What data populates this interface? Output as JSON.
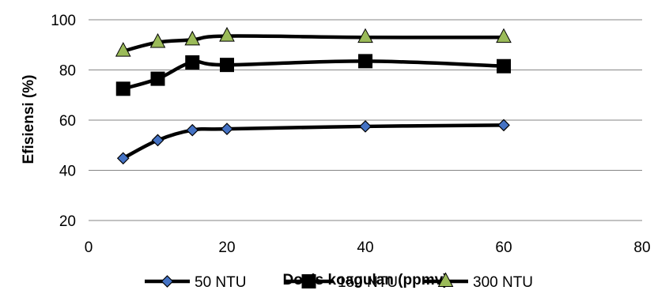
{
  "chart_data": {
    "type": "line",
    "title": "",
    "xlabel": "Dosis koagulan (ppmv)",
    "ylabel": "Efisiensi (%)",
    "xlim": [
      0,
      80
    ],
    "ylim": [
      20,
      100
    ],
    "xticks": [
      0,
      20,
      40,
      60,
      80
    ],
    "yticks": [
      20,
      40,
      60,
      80,
      100
    ],
    "grid": "horizontal",
    "legend_position": "bottom",
    "series": [
      {
        "name": "50 NTU",
        "marker": "diamond",
        "marker_fill": "#4472C4",
        "x": [
          5,
          10,
          15,
          20,
          40,
          60
        ],
        "y": [
          44.8,
          52,
          56,
          56.5,
          57.5,
          58
        ]
      },
      {
        "name": "150 NTU",
        "marker": "square",
        "marker_fill": "#000000",
        "x": [
          5,
          10,
          15,
          20,
          40,
          60
        ],
        "y": [
          72.5,
          76.5,
          83,
          82,
          83.5,
          81.5
        ]
      },
      {
        "name": "300 NTU",
        "marker": "triangle",
        "marker_fill": "#9BBB59",
        "x": [
          5,
          10,
          15,
          20,
          40,
          60
        ],
        "y": [
          87.5,
          91,
          92,
          93.5,
          93,
          93
        ]
      }
    ],
    "colors": {
      "line": "#000000",
      "grid": "#868686"
    }
  }
}
